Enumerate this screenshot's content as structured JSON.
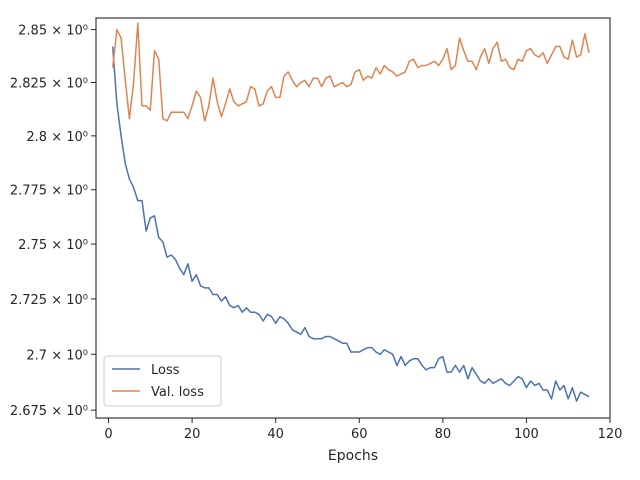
{
  "chart_data": {
    "type": "line",
    "title": "",
    "xlabel": "Epochs",
    "ylabel": "",
    "xlim": [
      -3,
      120
    ],
    "ylim": [
      2.6715,
      2.8555
    ],
    "yscale": "log",
    "grid": false,
    "legend_position": "lower-left",
    "x_ticks": [
      0,
      20,
      40,
      60,
      80,
      100,
      120
    ],
    "x_tick_labels": [
      "0",
      "20",
      "40",
      "60",
      "80",
      "100",
      "120"
    ],
    "y_ticks": [
      2.675,
      2.7,
      2.725,
      2.75,
      2.775,
      2.8,
      2.825,
      2.85
    ],
    "y_tick_labels": [
      "2.675 × 10⁰",
      "2.7 × 10⁰",
      "2.725 × 10⁰",
      "2.75 × 10⁰",
      "2.775 × 10⁰",
      "2.8 × 10⁰",
      "2.825 × 10⁰",
      "2.85 × 10⁰"
    ],
    "series": [
      {
        "name": "Loss",
        "color": "#4c72b0",
        "x": [
          1,
          2,
          3,
          4,
          5,
          6,
          7,
          8,
          9,
          10,
          11,
          12,
          13,
          14,
          15,
          16,
          17,
          18,
          19,
          20,
          21,
          22,
          23,
          24,
          25,
          26,
          27,
          28,
          29,
          30,
          31,
          32,
          33,
          34,
          35,
          36,
          37,
          38,
          39,
          40,
          41,
          42,
          43,
          44,
          45,
          46,
          47,
          48,
          49,
          50,
          51,
          52,
          53,
          54,
          55,
          56,
          57,
          58,
          59,
          60,
          61,
          62,
          63,
          64,
          65,
          66,
          67,
          68,
          69,
          70,
          71,
          72,
          73,
          74,
          75,
          76,
          77,
          78,
          79,
          80,
          81,
          82,
          83,
          84,
          85,
          86,
          87,
          88,
          89,
          90,
          91,
          92,
          93,
          94,
          95,
          96,
          97,
          98,
          99,
          100,
          101,
          102,
          103,
          104,
          105,
          106,
          107,
          108,
          109,
          110,
          111,
          112,
          113,
          114,
          115
        ],
        "values": [
          2.842,
          2.815,
          2.8,
          2.787,
          2.78,
          2.776,
          2.77,
          2.77,
          2.756,
          2.762,
          2.763,
          2.753,
          2.751,
          2.744,
          2.745,
          2.743,
          2.739,
          2.736,
          2.741,
          2.733,
          2.736,
          2.731,
          2.73,
          2.73,
          2.727,
          2.727,
          2.724,
          2.726,
          2.722,
          2.721,
          2.722,
          2.719,
          2.721,
          2.719,
          2.719,
          2.718,
          2.715,
          2.718,
          2.717,
          2.714,
          2.717,
          2.716,
          2.714,
          2.711,
          2.71,
          2.709,
          2.712,
          2.708,
          2.707,
          2.707,
          2.707,
          2.708,
          2.708,
          2.707,
          2.706,
          2.705,
          2.705,
          2.701,
          2.701,
          2.701,
          2.702,
          2.703,
          2.703,
          2.701,
          2.7,
          2.702,
          2.701,
          2.7,
          2.695,
          2.699,
          2.695,
          2.697,
          2.698,
          2.698,
          2.695,
          2.693,
          2.694,
          2.694,
          2.698,
          2.699,
          2.692,
          2.692,
          2.695,
          2.692,
          2.695,
          2.689,
          2.694,
          2.691,
          2.688,
          2.687,
          2.689,
          2.687,
          2.688,
          2.689,
          2.687,
          2.686,
          2.688,
          2.69,
          2.689,
          2.685,
          2.688,
          2.686,
          2.687,
          2.684,
          2.684,
          2.68,
          2.688,
          2.684,
          2.686,
          2.68,
          2.685,
          2.679,
          2.683,
          2.682,
          2.681
        ]
      },
      {
        "name": "Val. loss",
        "color": "#dd8452",
        "x": [
          1,
          2,
          3,
          4,
          5,
          6,
          7,
          8,
          9,
          10,
          11,
          12,
          13,
          14,
          15,
          16,
          17,
          18,
          19,
          20,
          21,
          22,
          23,
          24,
          25,
          26,
          27,
          28,
          29,
          30,
          31,
          32,
          33,
          34,
          35,
          36,
          37,
          38,
          39,
          40,
          41,
          42,
          43,
          44,
          45,
          46,
          47,
          48,
          49,
          50,
          51,
          52,
          53,
          54,
          55,
          56,
          57,
          58,
          59,
          60,
          61,
          62,
          63,
          64,
          65,
          66,
          67,
          68,
          69,
          70,
          71,
          72,
          73,
          74,
          75,
          76,
          77,
          78,
          79,
          80,
          81,
          82,
          83,
          84,
          85,
          86,
          87,
          88,
          89,
          90,
          91,
          92,
          93,
          94,
          95,
          96,
          97,
          98,
          99,
          100,
          101,
          102,
          103,
          104,
          105,
          106,
          107,
          108,
          109,
          110,
          111,
          112,
          113,
          114,
          115
        ],
        "values": [
          2.832,
          2.85,
          2.846,
          2.826,
          2.808,
          2.825,
          2.853,
          2.814,
          2.814,
          2.812,
          2.84,
          2.836,
          2.808,
          2.807,
          2.811,
          2.811,
          2.811,
          2.811,
          2.808,
          2.814,
          2.821,
          2.818,
          2.807,
          2.814,
          2.827,
          2.816,
          2.809,
          2.815,
          2.822,
          2.816,
          2.814,
          2.815,
          2.816,
          2.823,
          2.822,
          2.814,
          2.815,
          2.821,
          2.823,
          2.818,
          2.818,
          2.828,
          2.83,
          2.826,
          2.823,
          2.825,
          2.826,
          2.823,
          2.827,
          2.827,
          2.823,
          2.827,
          2.828,
          2.823,
          2.824,
          2.825,
          2.823,
          2.824,
          2.83,
          2.831,
          2.826,
          2.828,
          2.827,
          2.832,
          2.829,
          2.833,
          2.831,
          2.83,
          2.828,
          2.829,
          2.83,
          2.835,
          2.836,
          2.832,
          2.833,
          2.833,
          2.834,
          2.835,
          2.833,
          2.836,
          2.841,
          2.831,
          2.833,
          2.846,
          2.84,
          2.835,
          2.835,
          2.831,
          2.837,
          2.841,
          2.834,
          2.841,
          2.844,
          2.835,
          2.836,
          2.832,
          2.831,
          2.836,
          2.835,
          2.84,
          2.841,
          2.838,
          2.837,
          2.839,
          2.834,
          2.838,
          2.842,
          2.842,
          2.837,
          2.836,
          2.845,
          2.837,
          2.838,
          2.848,
          2.839
        ]
      }
    ]
  }
}
